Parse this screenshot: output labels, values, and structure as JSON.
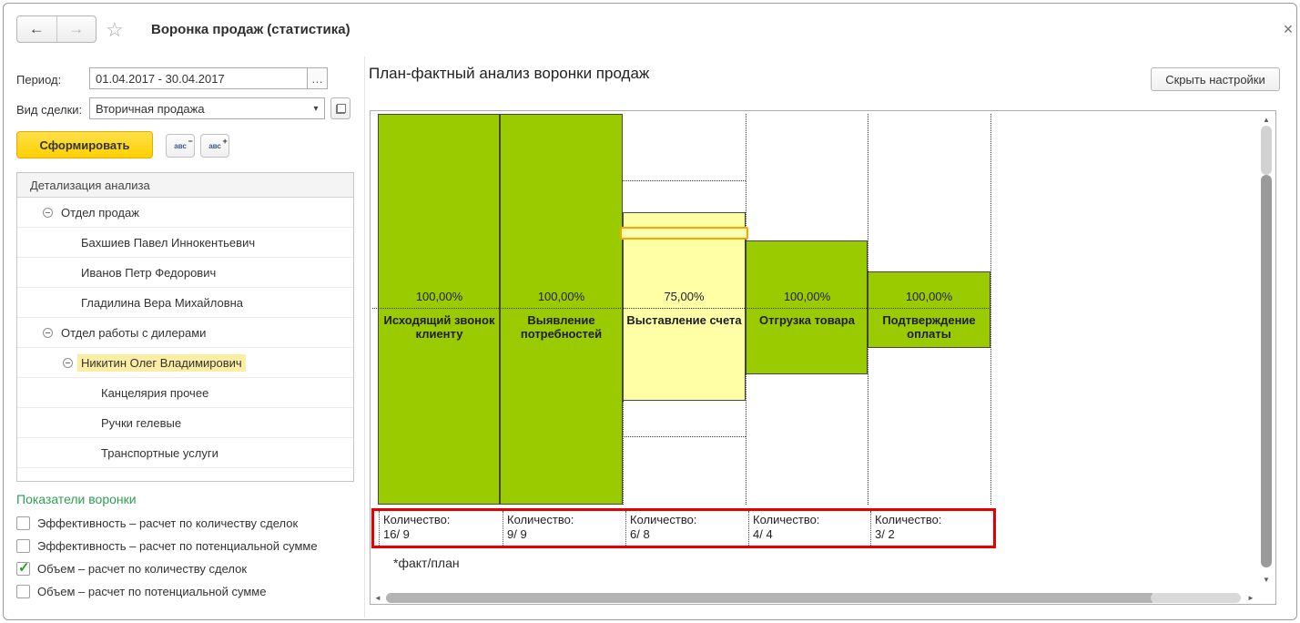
{
  "icons": {
    "back": "←",
    "forward": "→",
    "star": "☆",
    "close": "×",
    "ellipsis": "…",
    "dropdown": "▾",
    "abc": "авс",
    "minus": "−",
    "plus": "+",
    "check": "✓",
    "up": "▲",
    "down": "▼",
    "left": "◄",
    "right": "►"
  },
  "window": {
    "title": "Воронка продаж (статистика)"
  },
  "toolbar": {
    "period_label": "Период:",
    "period_value": "01.04.2017 - 30.04.2017",
    "deal_type_label": "Вид сделки:",
    "deal_type_value": "Вторичная продажа",
    "generate_label": "Сформировать"
  },
  "tree": {
    "header": "Детализация анализа",
    "items": [
      {
        "label": "Отдел продаж",
        "level": 0,
        "node": true,
        "selected": false
      },
      {
        "label": "Бахшиев Павел Иннокентьевич",
        "level": 1,
        "node": false,
        "selected": false
      },
      {
        "label": "Иванов Петр Федорович",
        "level": 1,
        "node": false,
        "selected": false
      },
      {
        "label": "Гладилина Вера Михайловна",
        "level": 1,
        "node": false,
        "selected": false
      },
      {
        "label": "Отдел работы с дилерами",
        "level": 0,
        "node": true,
        "selected": false
      },
      {
        "label": "Никитин Олег Владимирович",
        "level": 1,
        "node": true,
        "selected": true
      },
      {
        "label": "Канцелярия прочее",
        "level": 2,
        "node": false,
        "selected": false
      },
      {
        "label": "Ручки гелевые",
        "level": 2,
        "node": false,
        "selected": false
      },
      {
        "label": "Транспортные услуги",
        "level": 2,
        "node": false,
        "selected": false
      }
    ]
  },
  "indicators": {
    "title": "Показатели воронки",
    "options": [
      {
        "label": "Эффективность – расчет по количеству сделок",
        "checked": false
      },
      {
        "label": "Эффективность – расчет по потенциальной сумме",
        "checked": false
      },
      {
        "label": "Объем – расчет по количеству сделок",
        "checked": true
      },
      {
        "label": "Объем – расчет по потенциальной сумме",
        "checked": false
      }
    ]
  },
  "report": {
    "title": "План-фактный анализ воронки продаж",
    "hide_settings_label": "Скрыть настройки"
  },
  "chart_data": {
    "type": "bar",
    "subtype": "plan-fact-funnel",
    "categories": [
      "Исходящий звонок клиенту",
      "Выявление потребностей",
      "Выставление счета",
      "Отгрузка товара",
      "Подтверждение оплаты"
    ],
    "series": [
      {
        "name": "факт",
        "values": [
          16,
          9,
          6,
          4,
          3
        ]
      },
      {
        "name": "план",
        "values": [
          9,
          9,
          8,
          4,
          2
        ]
      }
    ],
    "percentages": [
      "100,00%",
      "100,00%",
      "75,00%",
      "100,00%",
      "100,00%"
    ],
    "quantity_label": "Количество:",
    "quantity_values": [
      "16/ 9",
      "9/ 9",
      "6/ 8",
      "4/ 4",
      "3/ 2"
    ],
    "footnote": "*факт/план",
    "colors": {
      "fact_ok": "#9aca00",
      "fact_below_plan": "#ffffa6",
      "selection_highlight": "#f2a800",
      "annotation_border": "#e60000"
    },
    "legend_position": "none",
    "grid": "dotted-plan-outlines"
  }
}
